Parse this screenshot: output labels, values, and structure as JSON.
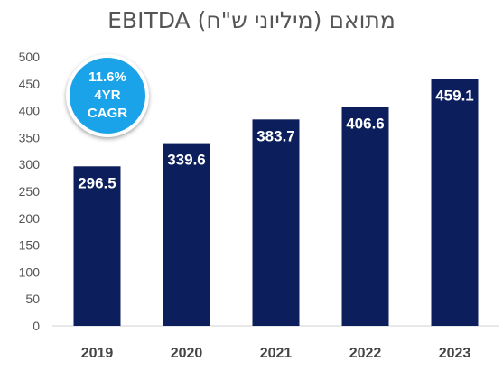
{
  "title": "EBITDA מתואם (מיליוני ש\"ח)",
  "cagr_badge": {
    "line1": "11.6%",
    "line2": "4YR",
    "line3": "CAGR"
  },
  "colors": {
    "bar": "#0c1f5c",
    "badge": "#1aa3e8"
  },
  "chart_data": {
    "type": "bar",
    "title": "EBITDA מתואם (מיליוני ש\"ח)",
    "categories": [
      "2019",
      "2020",
      "2021",
      "2022",
      "2023"
    ],
    "values": [
      296.5,
      339.6,
      383.7,
      406.6,
      459.1
    ],
    "ylim": [
      0,
      500
    ],
    "yticks": [
      0,
      50,
      100,
      150,
      200,
      250,
      300,
      350,
      400,
      450,
      500
    ],
    "grid": false
  }
}
